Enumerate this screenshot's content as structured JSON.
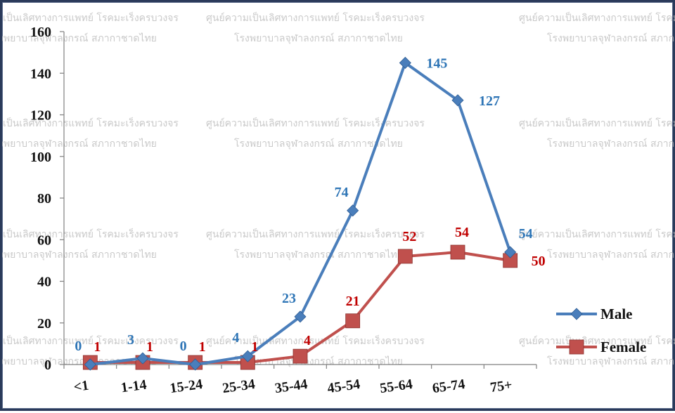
{
  "watermark": {
    "line1": "ศูนย์ความเป็นเลิศทางการแพทย์ โรคมะเร็งครบวงจร",
    "line2": "โรงพยาบาลจุฬาลงกรณ์ สภากาชาดไทย"
  },
  "chart_data": {
    "type": "line",
    "categories": [
      "<1",
      "1-14",
      "15-24",
      "25-34",
      "35-44",
      "45-54",
      "55-64",
      "65-74",
      "75+"
    ],
    "series": [
      {
        "name": "Male",
        "color": "#4a7ebb",
        "label_color": "#2e75b6",
        "marker": "diamond",
        "values": [
          0,
          3,
          0,
          4,
          23,
          74,
          145,
          127,
          54
        ]
      },
      {
        "name": "Female",
        "color": "#c0504d",
        "label_color": "#c00000",
        "marker": "square",
        "values": [
          1,
          1,
          1,
          1,
          4,
          21,
          52,
          54,
          50
        ]
      }
    ],
    "ylim": [
      0,
      160
    ],
    "yticks": [
      0,
      20,
      40,
      60,
      80,
      100,
      120,
      140,
      160
    ],
    "grid": false,
    "legend_position": "right",
    "title": "",
    "xlabel": "",
    "ylabel": ""
  }
}
